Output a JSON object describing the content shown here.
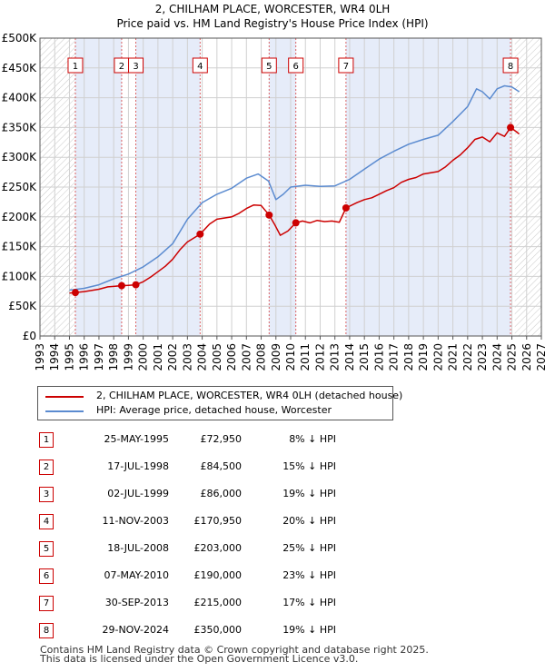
{
  "chart_data": {
    "type": "line",
    "title": "2, CHILHAM PLACE, WORCESTER, WR4 0LH",
    "subtitle": "Price paid vs. HM Land Registry's House Price Index (HPI)",
    "xlim": [
      1993,
      2027
    ],
    "ylim": [
      0,
      500000
    ],
    "y_ticks": [
      {
        "value": 0,
        "label": "£0"
      },
      {
        "value": 50000,
        "label": "£50K"
      },
      {
        "value": 100000,
        "label": "£100K"
      },
      {
        "value": 150000,
        "label": "£150K"
      },
      {
        "value": 200000,
        "label": "£200K"
      },
      {
        "value": 250000,
        "label": "£250K"
      },
      {
        "value": 300000,
        "label": "£300K"
      },
      {
        "value": 350000,
        "label": "£350K"
      },
      {
        "value": 400000,
        "label": "£400K"
      },
      {
        "value": 450000,
        "label": "£450K"
      },
      {
        "value": 500000,
        "label": "£500K"
      }
    ],
    "x_ticks": [
      "1993",
      "1994",
      "1995",
      "1996",
      "1997",
      "1998",
      "1999",
      "2000",
      "2001",
      "2002",
      "2003",
      "2004",
      "2005",
      "2006",
      "2007",
      "2008",
      "2009",
      "2010",
      "2011",
      "2012",
      "2013",
      "2014",
      "2015",
      "2016",
      "2017",
      "2018",
      "2019",
      "2020",
      "2021",
      "2022",
      "2023",
      "2024",
      "2025",
      "2026",
      "2027"
    ],
    "hatch_regions": [
      [
        1993,
        1995.4
      ],
      [
        2025.2,
        2027
      ]
    ],
    "shaded_between_sales": true,
    "series": [
      {
        "name": "2, CHILHAM PLACE, WORCESTER, WR4 0LH (detached house)",
        "color": "#cc0000",
        "points": [
          [
            1995.0,
            72000
          ],
          [
            1995.4,
            72950
          ],
          [
            1996.0,
            74500
          ],
          [
            1997.0,
            78500
          ],
          [
            1997.6,
            82500
          ],
          [
            1998.54,
            84500
          ],
          [
            1999.0,
            85000
          ],
          [
            1999.5,
            86000
          ],
          [
            2000.0,
            91000
          ],
          [
            2000.5,
            99000
          ],
          [
            2001.0,
            108000
          ],
          [
            2001.5,
            117000
          ],
          [
            2002.0,
            129000
          ],
          [
            2002.5,
            145000
          ],
          [
            2003.0,
            158000
          ],
          [
            2003.86,
            170950
          ],
          [
            2004.5,
            188000
          ],
          [
            2005.0,
            196000
          ],
          [
            2005.5,
            198000
          ],
          [
            2006.0,
            200000
          ],
          [
            2006.5,
            206000
          ],
          [
            2007.0,
            214000
          ],
          [
            2007.5,
            220000
          ],
          [
            2008.0,
            219000
          ],
          [
            2008.54,
            203000
          ],
          [
            2008.9,
            188000
          ],
          [
            2009.3,
            169000
          ],
          [
            2009.8,
            176000
          ],
          [
            2010.35,
            190000
          ],
          [
            2010.8,
            193000
          ],
          [
            2011.3,
            190000
          ],
          [
            2011.8,
            194000
          ],
          [
            2012.3,
            192000
          ],
          [
            2012.8,
            193000
          ],
          [
            2013.3,
            191000
          ],
          [
            2013.75,
            215000
          ],
          [
            2014.5,
            224000
          ],
          [
            2015.0,
            229000
          ],
          [
            2015.5,
            232000
          ],
          [
            2016.0,
            238000
          ],
          [
            2016.5,
            244000
          ],
          [
            2017.0,
            249000
          ],
          [
            2017.5,
            258000
          ],
          [
            2018.0,
            263000
          ],
          [
            2018.5,
            266000
          ],
          [
            2019.0,
            272000
          ],
          [
            2019.5,
            274000
          ],
          [
            2020.0,
            276000
          ],
          [
            2020.5,
            284000
          ],
          [
            2021.0,
            295000
          ],
          [
            2021.5,
            304000
          ],
          [
            2022.0,
            316000
          ],
          [
            2022.5,
            330000
          ],
          [
            2023.0,
            334000
          ],
          [
            2023.5,
            326000
          ],
          [
            2024.0,
            341000
          ],
          [
            2024.5,
            335000
          ],
          [
            2024.91,
            350000
          ],
          [
            2025.3,
            343000
          ],
          [
            2025.5,
            339000
          ]
        ]
      },
      {
        "name": "HPI: Average price, detached house, Worcester",
        "color": "#5b8bd0",
        "points": [
          [
            1995.0,
            77000
          ],
          [
            1996.0,
            80000
          ],
          [
            1997.0,
            86000
          ],
          [
            1998.0,
            96000
          ],
          [
            1999.0,
            104000
          ],
          [
            2000.0,
            116000
          ],
          [
            2001.0,
            133000
          ],
          [
            2002.0,
            155000
          ],
          [
            2003.0,
            196000
          ],
          [
            2004.0,
            224000
          ],
          [
            2005.0,
            238000
          ],
          [
            2006.0,
            248000
          ],
          [
            2007.0,
            265000
          ],
          [
            2007.8,
            272000
          ],
          [
            2008.5,
            260000
          ],
          [
            2009.0,
            229000
          ],
          [
            2009.5,
            238000
          ],
          [
            2010.0,
            250000
          ],
          [
            2011.0,
            253000
          ],
          [
            2012.0,
            251000
          ],
          [
            2013.0,
            252000
          ],
          [
            2014.0,
            263000
          ],
          [
            2015.0,
            280000
          ],
          [
            2016.0,
            297000
          ],
          [
            2017.0,
            310000
          ],
          [
            2018.0,
            322000
          ],
          [
            2019.0,
            330000
          ],
          [
            2020.0,
            337000
          ],
          [
            2021.0,
            360000
          ],
          [
            2022.0,
            385000
          ],
          [
            2022.6,
            415000
          ],
          [
            2023.0,
            410000
          ],
          [
            2023.5,
            398000
          ],
          [
            2024.0,
            415000
          ],
          [
            2024.5,
            420000
          ],
          [
            2025.0,
            418000
          ],
          [
            2025.5,
            410000
          ]
        ]
      }
    ],
    "sales": [
      {
        "num": "1",
        "x": 1995.4,
        "price": 72950
      },
      {
        "num": "2",
        "x": 1998.54,
        "price": 84500
      },
      {
        "num": "3",
        "x": 1999.5,
        "price": 86000
      },
      {
        "num": "4",
        "x": 2003.86,
        "price": 170950
      },
      {
        "num": "5",
        "x": 2008.54,
        "price": 203000
      },
      {
        "num": "6",
        "x": 2010.35,
        "price": 190000
      },
      {
        "num": "7",
        "x": 2013.75,
        "price": 215000
      },
      {
        "num": "8",
        "x": 2024.91,
        "price": 350000
      }
    ]
  },
  "legend": {
    "property_label": "2, CHILHAM PLACE, WORCESTER, WR4 0LH (detached house)",
    "hpi_label": "HPI: Average price, detached house, Worcester"
  },
  "sales_table": [
    {
      "num": "1",
      "date": "25-MAY-1995",
      "price": "£72,950",
      "hpi": "8% ↓ HPI"
    },
    {
      "num": "2",
      "date": "17-JUL-1998",
      "price": "£84,500",
      "hpi": "15% ↓ HPI"
    },
    {
      "num": "3",
      "date": "02-JUL-1999",
      "price": "£86,000",
      "hpi": "19% ↓ HPI"
    },
    {
      "num": "4",
      "date": "11-NOV-2003",
      "price": "£170,950",
      "hpi": "20% ↓ HPI"
    },
    {
      "num": "5",
      "date": "18-JUL-2008",
      "price": "£203,000",
      "hpi": "25% ↓ HPI"
    },
    {
      "num": "6",
      "date": "07-MAY-2010",
      "price": "£190,000",
      "hpi": "23% ↓ HPI"
    },
    {
      "num": "7",
      "date": "30-SEP-2013",
      "price": "£215,000",
      "hpi": "17% ↓ HPI"
    },
    {
      "num": "8",
      "date": "29-NOV-2024",
      "price": "£350,000",
      "hpi": "19% ↓ HPI"
    }
  ],
  "footer": {
    "line1": "Contains HM Land Registry data © Crown copyright and database right 2025.",
    "line2": "This data is licensed under the Open Government Licence v3.0."
  },
  "colors": {
    "property_line": "#cc0000",
    "hpi_line": "#5b8bd0",
    "shade": "#e6ecf9",
    "grid": "#d0d0d0",
    "sale_marker": "#cc0000"
  }
}
